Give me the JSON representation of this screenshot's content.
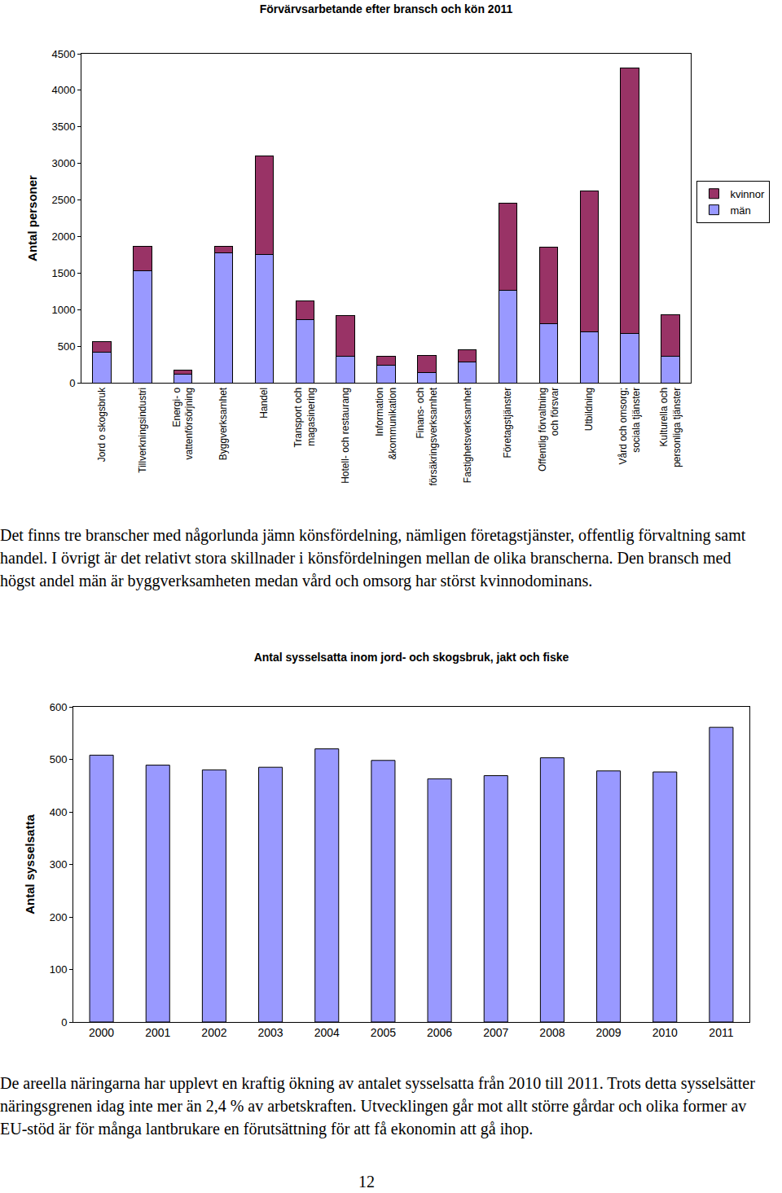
{
  "chart_data": [
    {
      "type": "bar",
      "title": "Förvärvsarbetande efter bransch och kön 2011",
      "ylabel": "Antal personer",
      "categories": [
        "Jord o skogsbruk",
        "Tillverkningsindustri",
        "Energi- o\nvattenförsörjning",
        "Byggverksamhet",
        "Handel",
        "Transport och\nmagasinering",
        "Hotell- och restaurang",
        "Information\n&kommunikation",
        "Finans- och\nförsäkringsverksamhet",
        "Fastighetsverksamhet",
        "Företagstjänster",
        "Offentlig förvaltning\noch försvar",
        "Utbildning",
        "Vård och omsorg;\nsociala tjänster",
        "Kulturella och\npersonliga tjänster"
      ],
      "series": [
        {
          "name": "män",
          "color": "#9999ff",
          "values": [
            420,
            1530,
            120,
            1780,
            1750,
            860,
            360,
            240,
            140,
            280,
            1260,
            810,
            700,
            670,
            360
          ]
        },
        {
          "name": "kvinnor",
          "color": "#993366",
          "values": [
            140,
            340,
            50,
            90,
            1350,
            260,
            560,
            120,
            230,
            170,
            1200,
            1040,
            1920,
            3630,
            570
          ]
        }
      ],
      "stacked": true,
      "ylim": [
        0,
        4500
      ],
      "yticks": [
        0,
        500,
        1000,
        1500,
        2000,
        2500,
        3000,
        3500,
        4000,
        4500
      ],
      "grid": false,
      "legend": "right"
    },
    {
      "type": "bar",
      "title": "Antal sysselsatta inom jord- och skogsbruk, jakt och fiske",
      "ylabel": "Antal sysselsatta",
      "categories": [
        "2000",
        "2001",
        "2002",
        "2003",
        "2004",
        "2005",
        "2006",
        "2007",
        "2008",
        "2009",
        "2010",
        "2011"
      ],
      "values": [
        508,
        489,
        480,
        485,
        520,
        498,
        463,
        469,
        503,
        478,
        476,
        561
      ],
      "color": "#9999ff",
      "ylim": [
        0,
        600
      ],
      "yticks": [
        0,
        100,
        200,
        300,
        400,
        500,
        600
      ],
      "grid": false
    }
  ],
  "text": {
    "paragraphs": [
      "Det finns tre branscher med någorlunda jämn könsfördelning, nämligen företagstjänster, offentlig förvaltning samt handel. I övrigt är det relativt stora skillnader i könsfördelningen mellan de olika branscherna. Den bransch med högst andel män är byggverksamheten medan vård och omsorg har störst kvinnodominans.",
      "De areella näringarna har upplevt en kraftig ökning av antalet sysselsatta från 2010 till 2011. Trots detta sysselsätter näringsgrenen idag inte mer än 2,4 % av arbetskraften. Utvecklingen går mot allt större gårdar och olika former av EU-stöd är för många lantbrukare en förutsättning för att få ekonomin att gå ihop."
    ],
    "page_number": "12"
  }
}
